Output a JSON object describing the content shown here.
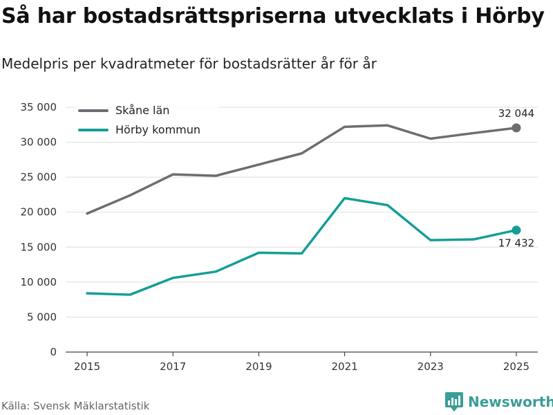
{
  "header": {
    "title": "Så har bostadsrättspriserna utvecklats i Hörby",
    "subtitle": "Medelpris per kvadratmeter för bostadsrätter år för år"
  },
  "footer": {
    "source": "Källa: Svensk Mäklarstatistik",
    "brand": "Newsworthy"
  },
  "colors": {
    "skane": "#6d6c72",
    "horby": "#149e96",
    "grid": "#dddddd"
  },
  "chart_data": {
    "type": "line",
    "title": "Så har bostadsrättspriserna utvecklats i Hörby",
    "subtitle": "Medelpris per kvadratmeter för bostadsrätter år för år",
    "xlabel": "",
    "ylabel": "",
    "x": [
      2015,
      2016,
      2017,
      2018,
      2019,
      2020,
      2021,
      2022,
      2023,
      2024,
      2025
    ],
    "x_ticks": [
      "2015",
      "2017",
      "2019",
      "2021",
      "2023",
      "2025"
    ],
    "y_ticks": [
      "0",
      "5 000",
      "10 000",
      "15 000",
      "20 000",
      "25 000",
      "30 000",
      "35 000"
    ],
    "ylim": [
      0,
      35000
    ],
    "xlim": [
      2014.5,
      2025.5
    ],
    "grid": true,
    "legend_position": "top-left",
    "series": [
      {
        "name": "Skåne län",
        "color_key": "skane",
        "values": [
          19800,
          22400,
          25400,
          25200,
          26800,
          28400,
          32200,
          32400,
          30500,
          31300,
          32044
        ],
        "end_label": "32 044"
      },
      {
        "name": "Hörby kommun",
        "color_key": "horby",
        "values": [
          8400,
          8200,
          10600,
          11500,
          14200,
          14100,
          22000,
          21000,
          16000,
          16100,
          17432
        ],
        "end_label": "17 432"
      }
    ]
  }
}
